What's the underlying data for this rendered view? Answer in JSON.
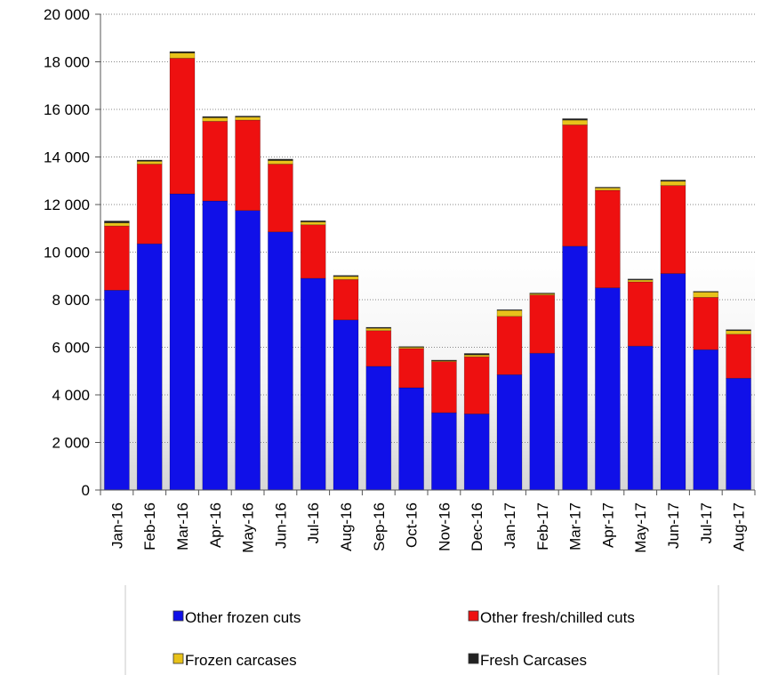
{
  "chart_data": {
    "type": "bar",
    "stacked": true,
    "title": "",
    "xlabel": "",
    "ylabel": "",
    "ylim": [
      0,
      20000
    ],
    "yticks": [
      0,
      2000,
      4000,
      6000,
      8000,
      10000,
      12000,
      14000,
      16000,
      18000,
      20000
    ],
    "ytick_labels": [
      "0",
      "2 000",
      "4 000",
      "6 000",
      "8 000",
      "10 000",
      "12 000",
      "14 000",
      "16 000",
      "18 000",
      "20 000"
    ],
    "grid": "horizontal dotted",
    "legend_position": "bottom",
    "categories": [
      "Jan-16",
      "Feb-16",
      "Mar-16",
      "Apr-16",
      "May-16",
      "Jun-16",
      "Jul-16",
      "Aug-16",
      "Sep-16",
      "Oct-16",
      "Nov-16",
      "Dec-16",
      "Jan-17",
      "Feb-17",
      "Mar-17",
      "Apr-17",
      "May-17",
      "Jun-17",
      "Jul-17",
      "Aug-17"
    ],
    "series": [
      {
        "name": "Other frozen cuts",
        "color": "#1010e8",
        "values": [
          8400,
          10350,
          12450,
          12150,
          11750,
          10850,
          8900,
          7150,
          5200,
          4300,
          3250,
          3200,
          4850,
          5750,
          10250,
          8500,
          6050,
          9100,
          5900,
          4700
        ]
      },
      {
        "name": "Other fresh/chilled cuts",
        "color": "#ee1010",
        "values": [
          2700,
          3350,
          5700,
          3350,
          3800,
          2850,
          2250,
          1700,
          1500,
          1650,
          2150,
          2400,
          2450,
          2450,
          5100,
          4100,
          2700,
          3700,
          2200,
          1850
        ]
      },
      {
        "name": "Frozen carcases",
        "color": "#e8c21a",
        "values": [
          130,
          120,
          220,
          150,
          130,
          150,
          120,
          130,
          100,
          60,
          40,
          80,
          250,
          60,
          200,
          100,
          80,
          180,
          220,
          150
        ]
      },
      {
        "name": "Fresh Carcases",
        "color": "#222222",
        "values": [
          80,
          50,
          60,
          50,
          40,
          60,
          50,
          40,
          40,
          20,
          20,
          60,
          30,
          20,
          60,
          30,
          40,
          50,
          30,
          40
        ]
      }
    ]
  }
}
